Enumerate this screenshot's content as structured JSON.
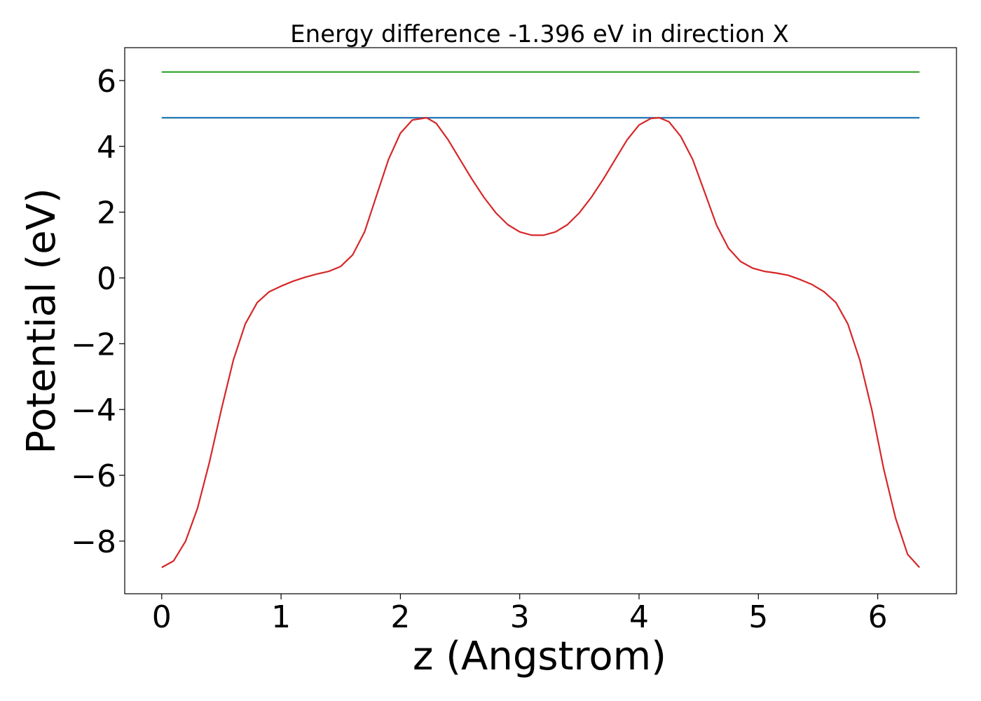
{
  "chart_data": {
    "type": "line",
    "title": "Energy difference -1.396 eV in direction X",
    "xlabel": "z (Angstrom)",
    "ylabel": "Potential (eV)",
    "xlim": [
      -0.31,
      6.66
    ],
    "ylim": [
      -9.6,
      7.0
    ],
    "xticks": [
      0,
      1,
      2,
      3,
      4,
      5,
      6
    ],
    "yticks": [
      -8,
      -6,
      -4,
      -2,
      0,
      2,
      4,
      6
    ],
    "xtick_labels": [
      "0",
      "1",
      "2",
      "3",
      "4",
      "5",
      "6"
    ],
    "ytick_labels": [
      "−8",
      "−6",
      "−4",
      "−2",
      "0",
      "2",
      "4",
      "6"
    ],
    "grid": false,
    "series": [
      {
        "color": "#2ca02c",
        "x": [
          0,
          6.35
        ],
        "y": [
          6.26,
          6.26
        ]
      },
      {
        "color": "#1f77b4",
        "x": [
          0,
          6.35
        ],
        "y": [
          4.87,
          4.87
        ]
      },
      {
        "color": "#d62728",
        "x": [
          0,
          0.1,
          0.2,
          0.3,
          0.4,
          0.5,
          0.6,
          0.7,
          0.8,
          0.9,
          1.0,
          1.1,
          1.2,
          1.3,
          1.4,
          1.5,
          1.6,
          1.7,
          1.8,
          1.9,
          2.0,
          2.1,
          2.22,
          2.3,
          2.4,
          2.5,
          2.6,
          2.7,
          2.8,
          2.9,
          3.0,
          3.1,
          3.2,
          3.3,
          3.4,
          3.5,
          3.6,
          3.7,
          3.8,
          3.9,
          4.0,
          4.1,
          4.17,
          4.25,
          4.35,
          4.45,
          4.55,
          4.65,
          4.75,
          4.85,
          4.95,
          5.05,
          5.15,
          5.25,
          5.35,
          5.45,
          5.55,
          5.65,
          5.75,
          5.85,
          5.95,
          6.05,
          6.15,
          6.25,
          6.35
        ],
        "y": [
          -8.8,
          -8.6,
          -8.0,
          -7.0,
          -5.6,
          -4.0,
          -2.5,
          -1.4,
          -0.75,
          -0.42,
          -0.25,
          -0.1,
          0.02,
          0.12,
          0.2,
          0.35,
          0.7,
          1.4,
          2.5,
          3.6,
          4.4,
          4.8,
          4.87,
          4.7,
          4.2,
          3.6,
          3.0,
          2.45,
          1.98,
          1.62,
          1.4,
          1.3,
          1.3,
          1.4,
          1.62,
          1.98,
          2.45,
          3.0,
          3.6,
          4.2,
          4.65,
          4.85,
          4.87,
          4.75,
          4.3,
          3.6,
          2.6,
          1.6,
          0.9,
          0.5,
          0.3,
          0.2,
          0.15,
          0.08,
          -0.05,
          -0.2,
          -0.42,
          -0.75,
          -1.4,
          -2.5,
          -4.0,
          -5.8,
          -7.3,
          -8.4,
          -8.8
        ]
      }
    ]
  }
}
